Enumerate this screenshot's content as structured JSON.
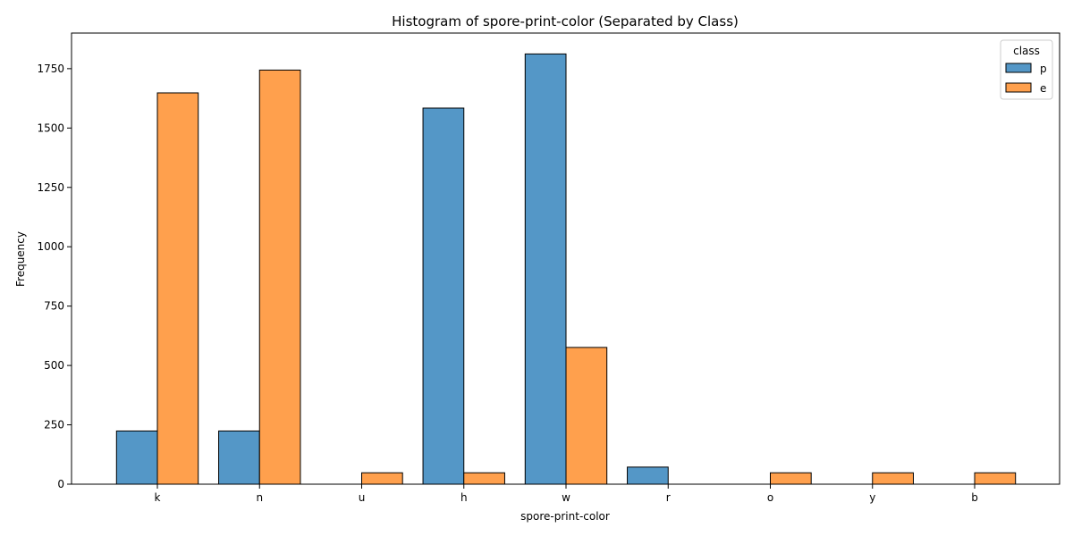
{
  "chart_data": {
    "type": "bar",
    "title": "Histogram of spore-print-color (Separated by Class)",
    "xlabel": "spore-print-color",
    "ylabel": "Frequency",
    "categories": [
      "k",
      "n",
      "u",
      "h",
      "w",
      "r",
      "o",
      "y",
      "b"
    ],
    "series": [
      {
        "name": "p",
        "values": [
          224,
          224,
          0,
          1584,
          1812,
          72,
          0,
          0,
          0
        ]
      },
      {
        "name": "e",
        "values": [
          1648,
          1744,
          48,
          48,
          576,
          0,
          48,
          48,
          48
        ]
      }
    ],
    "ylim": [
      0,
      1900
    ],
    "yticks": [
      0,
      250,
      500,
      750,
      1000,
      1250,
      1500,
      1750
    ],
    "grid": false,
    "legend": {
      "title": "class",
      "placement": "top-right"
    },
    "colors": {
      "p": "#5497c7",
      "e": "#ffa04d",
      "edge": "#000000"
    }
  }
}
